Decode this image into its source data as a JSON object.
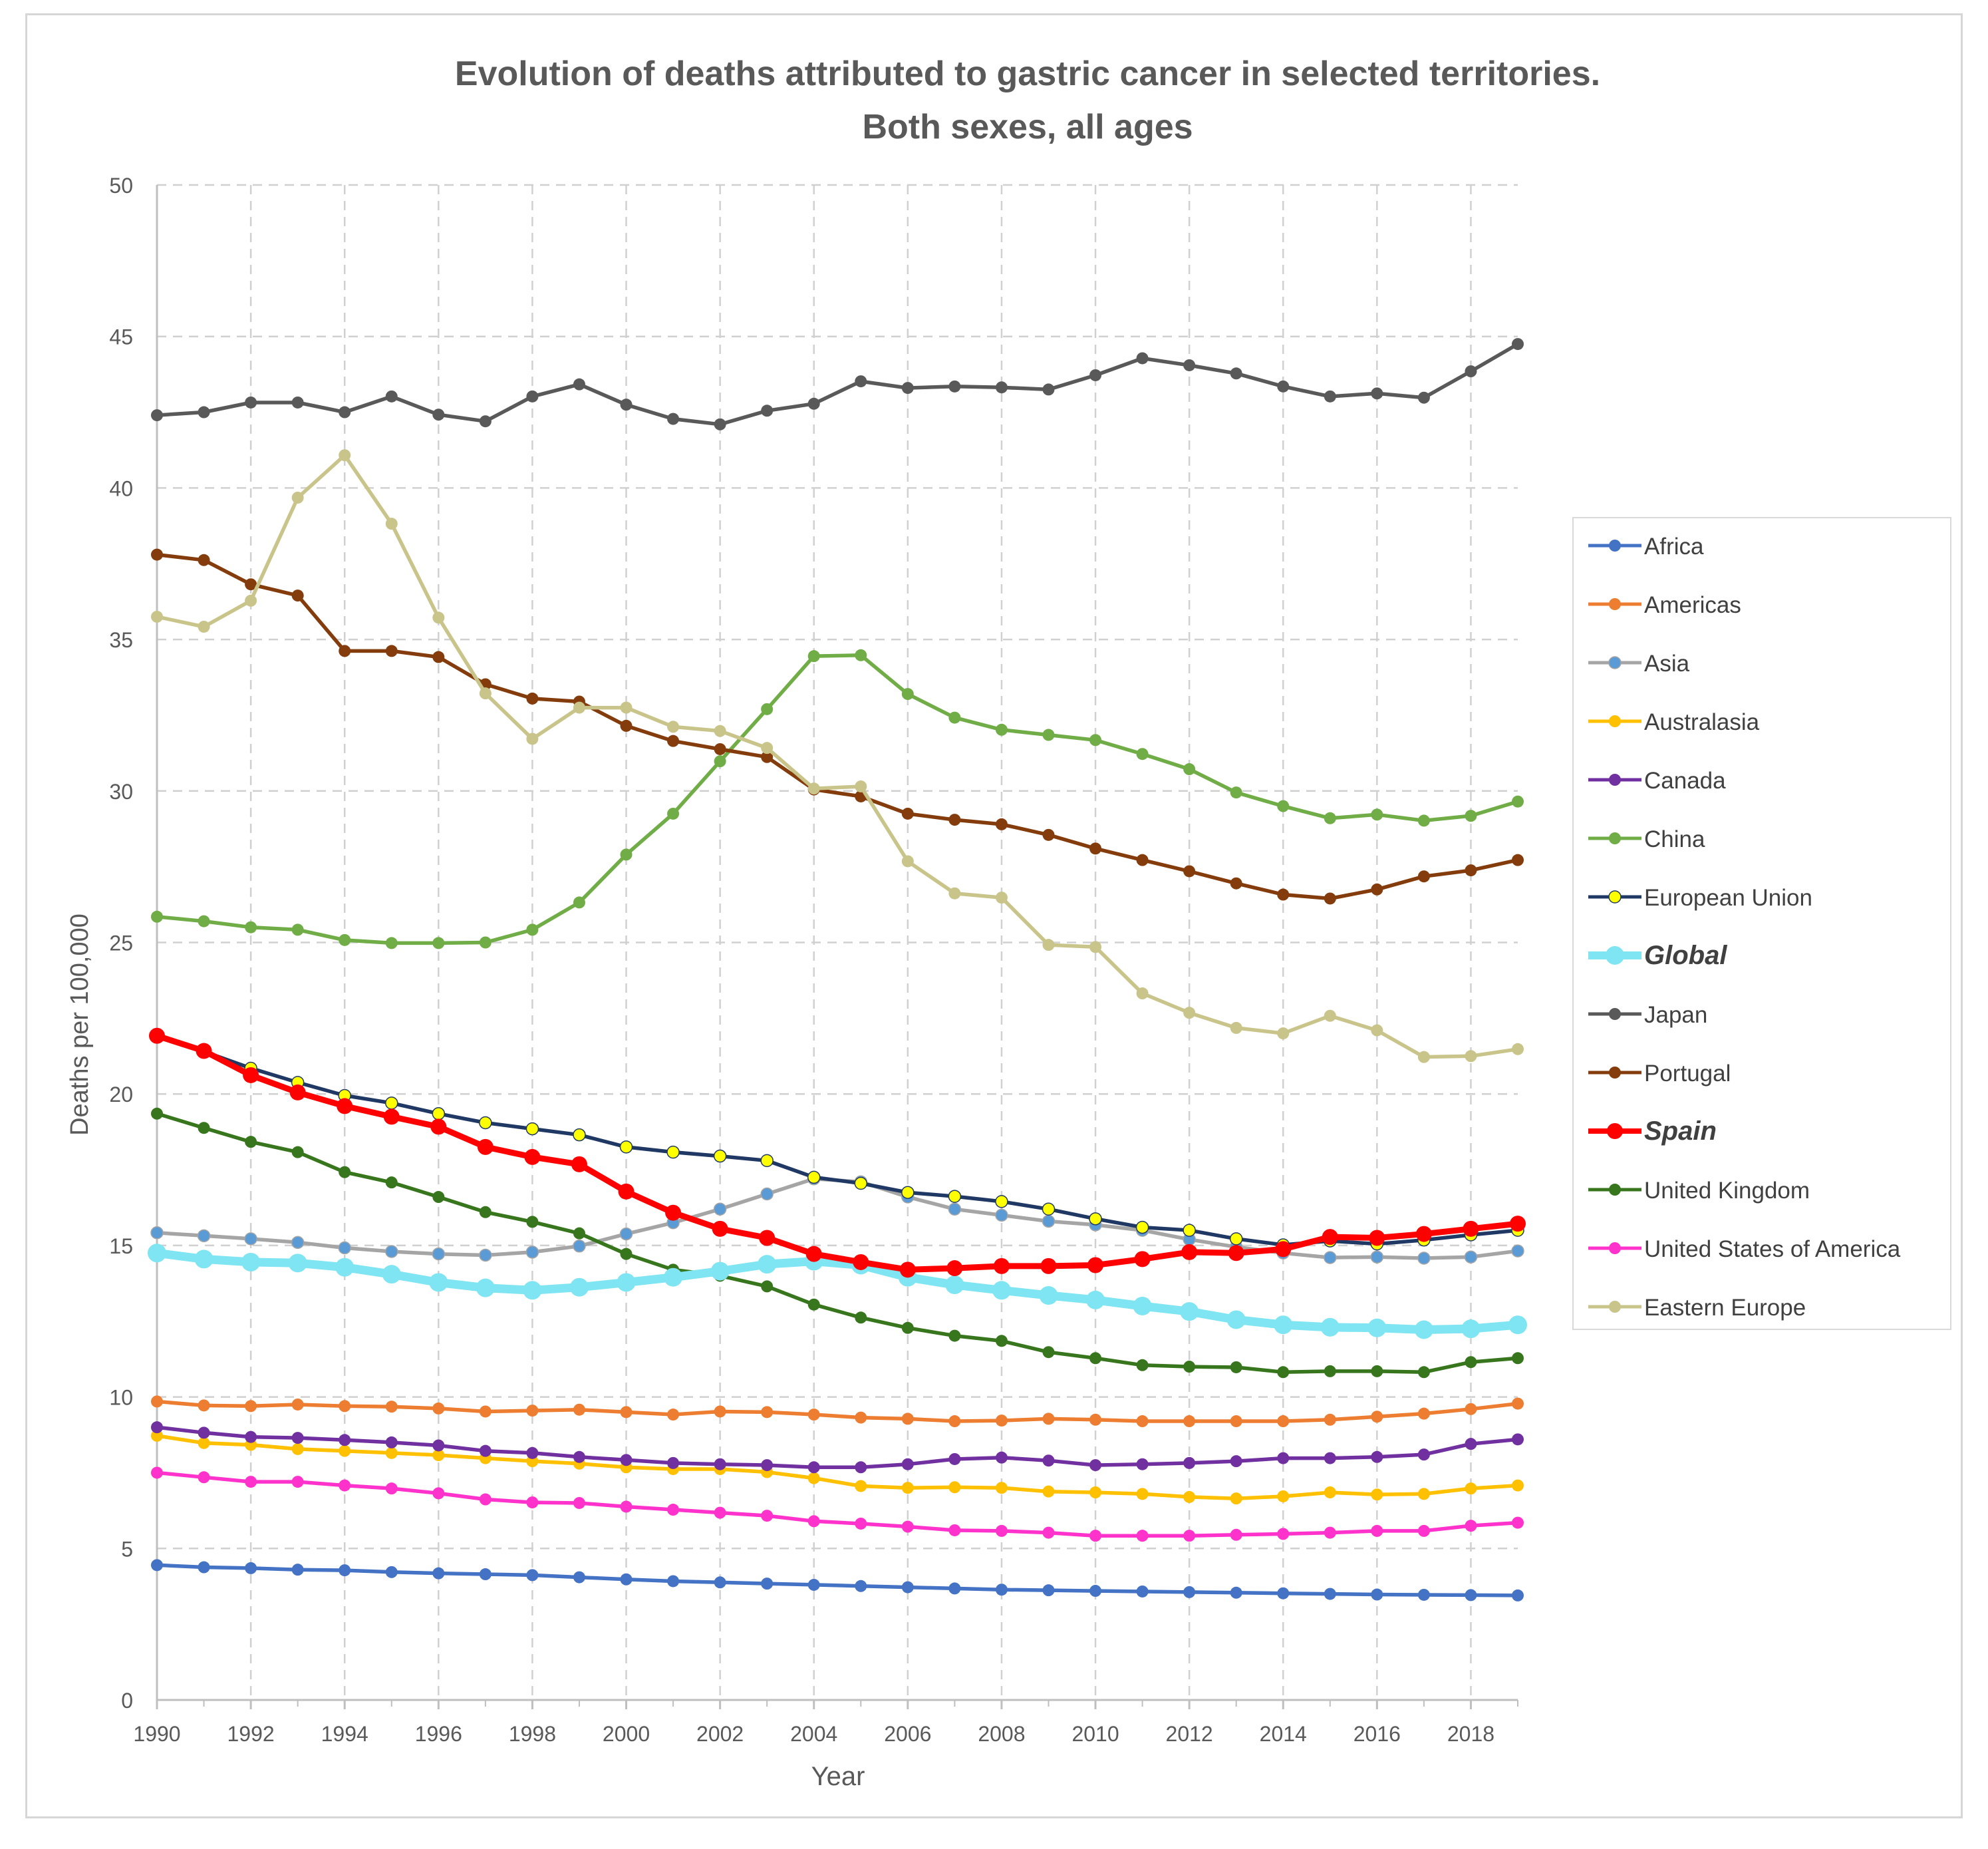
{
  "chart_data": {
    "type": "line",
    "title": "Evolution of deaths attributed to gastric cancer in selected territories.",
    "subtitle": "Both sexes, all ages",
    "xlabel": "Year",
    "ylabel": "Deaths per 100,000",
    "xlim": [
      1990,
      2019
    ],
    "ylim": [
      0,
      50
    ],
    "x_ticks": [
      "1990",
      "1992",
      "1994",
      "1996",
      "1998",
      "2000",
      "2002",
      "2004",
      "2006",
      "2008",
      "2010",
      "2012",
      "2014",
      "2016",
      "2018"
    ],
    "y_ticks": [
      "0",
      "5",
      "10",
      "15",
      "20",
      "25",
      "30",
      "35",
      "40",
      "45",
      "50"
    ],
    "grid": true,
    "legend_position": "right",
    "x": [
      1990,
      1991,
      1992,
      1993,
      1994,
      1995,
      1996,
      1997,
      1998,
      1999,
      2000,
      2001,
      2002,
      2003,
      2004,
      2005,
      2006,
      2007,
      2008,
      2009,
      2010,
      2011,
      2012,
      2013,
      2014,
      2015,
      2016,
      2017,
      2018,
      2019
    ],
    "series": [
      {
        "name": "Africa",
        "color": "#4472c4",
        "marker": "#4472c4",
        "style": "normal",
        "values": [
          4.45,
          4.38,
          4.35,
          4.3,
          4.28,
          4.22,
          4.18,
          4.15,
          4.12,
          4.05,
          3.98,
          3.92,
          3.88,
          3.84,
          3.8,
          3.76,
          3.72,
          3.68,
          3.64,
          3.62,
          3.6,
          3.58,
          3.56,
          3.54,
          3.52,
          3.5,
          3.48,
          3.47,
          3.46,
          3.45
        ]
      },
      {
        "name": "Americas",
        "color": "#ed7d31",
        "marker": "#ed7d31",
        "style": "normal",
        "values": [
          9.85,
          9.72,
          9.7,
          9.75,
          9.7,
          9.68,
          9.62,
          9.52,
          9.55,
          9.58,
          9.5,
          9.42,
          9.52,
          9.5,
          9.42,
          9.32,
          9.28,
          9.2,
          9.22,
          9.28,
          9.25,
          9.2,
          9.2,
          9.2,
          9.2,
          9.25,
          9.35,
          9.45,
          9.6,
          9.78
        ]
      },
      {
        "name": "Asia",
        "color": "#a5a5a5",
        "marker": "#5b9bd5",
        "style": "normal",
        "values": [
          15.42,
          15.32,
          15.22,
          15.1,
          14.92,
          14.8,
          14.72,
          14.68,
          14.78,
          14.98,
          15.38,
          15.75,
          16.2,
          16.7,
          17.2,
          17.1,
          16.6,
          16.2,
          16.0,
          15.8,
          15.68,
          15.5,
          15.2,
          14.95,
          14.75,
          14.6,
          14.62,
          14.58,
          14.62,
          14.82
        ]
      },
      {
        "name": "Australasia",
        "color": "#ffc000",
        "marker": "#ffc000",
        "style": "normal",
        "values": [
          8.72,
          8.48,
          8.42,
          8.28,
          8.22,
          8.15,
          8.08,
          7.98,
          7.88,
          7.8,
          7.68,
          7.62,
          7.62,
          7.52,
          7.32,
          7.06,
          7.0,
          7.02,
          7.0,
          6.88,
          6.85,
          6.8,
          6.7,
          6.65,
          6.72,
          6.85,
          6.78,
          6.8,
          6.98,
          7.08
        ]
      },
      {
        "name": "Canada",
        "color": "#7030a0",
        "marker": "#7030a0",
        "style": "normal",
        "values": [
          9.0,
          8.82,
          8.68,
          8.65,
          8.58,
          8.5,
          8.4,
          8.22,
          8.15,
          8.02,
          7.92,
          7.82,
          7.78,
          7.75,
          7.68,
          7.68,
          7.78,
          7.95,
          8.0,
          7.9,
          7.75,
          7.78,
          7.82,
          7.88,
          7.98,
          7.98,
          8.02,
          8.1,
          8.45,
          8.6
        ]
      },
      {
        "name": "China",
        "color": "#70ad47",
        "marker": "#70ad47",
        "style": "normal",
        "values": [
          25.85,
          25.7,
          25.5,
          25.42,
          25.08,
          24.98,
          24.98,
          25.0,
          25.42,
          26.32,
          27.9,
          29.25,
          30.98,
          32.7,
          34.45,
          34.48,
          33.2,
          32.42,
          32.02,
          31.85,
          31.68,
          31.22,
          30.72,
          29.95,
          29.5,
          29.1,
          29.22,
          29.02,
          29.18,
          29.65
        ]
      },
      {
        "name": "European Union",
        "color": "#1f3864",
        "marker": "#ffff00",
        "style": "normal",
        "values": [
          21.95,
          21.4,
          20.85,
          20.38,
          19.95,
          19.7,
          19.35,
          19.05,
          18.85,
          18.65,
          18.25,
          18.08,
          17.95,
          17.8,
          17.25,
          17.05,
          16.75,
          16.62,
          16.45,
          16.2,
          15.88,
          15.6,
          15.5,
          15.22,
          15.02,
          15.15,
          15.05,
          15.18,
          15.35,
          15.5
        ]
      },
      {
        "name": "Global",
        "color": "#7fe5f2",
        "marker": "#7fe5f2",
        "style": "thick",
        "values": [
          14.75,
          14.55,
          14.45,
          14.42,
          14.28,
          14.05,
          13.78,
          13.6,
          13.52,
          13.62,
          13.78,
          13.95,
          14.15,
          14.38,
          14.48,
          14.35,
          13.95,
          13.7,
          13.52,
          13.35,
          13.2,
          13.0,
          12.82,
          12.55,
          12.38,
          12.3,
          12.28,
          12.22,
          12.25,
          12.38
        ]
      },
      {
        "name": "Japan",
        "color": "#595959",
        "marker": "#595959",
        "style": "normal",
        "values": [
          42.4,
          42.5,
          42.82,
          42.82,
          42.5,
          43.02,
          42.42,
          42.2,
          43.02,
          43.42,
          42.75,
          42.28,
          42.1,
          42.55,
          42.78,
          43.52,
          43.3,
          43.35,
          43.32,
          43.25,
          43.72,
          44.28,
          44.05,
          43.78,
          43.35,
          43.02,
          43.12,
          42.98,
          43.85,
          44.75
        ]
      },
      {
        "name": "Portugal",
        "color": "#843c0c",
        "marker": "#843c0c",
        "style": "normal",
        "values": [
          37.8,
          37.62,
          36.82,
          36.45,
          34.62,
          34.62,
          34.42,
          33.52,
          33.05,
          32.95,
          32.15,
          31.65,
          31.38,
          31.12,
          30.05,
          29.82,
          29.25,
          29.05,
          28.9,
          28.55,
          28.1,
          27.72,
          27.35,
          26.95,
          26.58,
          26.45,
          26.75,
          27.18,
          27.38,
          27.72
        ]
      },
      {
        "name": "Spain",
        "color": "#ff0000",
        "marker": "#ff0000",
        "style": "bold",
        "values": [
          21.92,
          21.42,
          20.62,
          20.05,
          19.6,
          19.25,
          18.92,
          18.25,
          17.92,
          17.68,
          16.78,
          16.08,
          15.55,
          15.25,
          14.72,
          14.45,
          14.2,
          14.25,
          14.32,
          14.32,
          14.35,
          14.55,
          14.78,
          14.75,
          14.88,
          15.28,
          15.25,
          15.38,
          15.55,
          15.72
        ]
      },
      {
        "name": "United Kingdom",
        "color": "#38761d",
        "marker": "#38761d",
        "style": "normal",
        "values": [
          19.35,
          18.88,
          18.42,
          18.08,
          17.42,
          17.08,
          16.6,
          16.1,
          15.78,
          15.4,
          14.72,
          14.2,
          14.0,
          13.65,
          13.05,
          12.62,
          12.28,
          12.02,
          11.85,
          11.48,
          11.28,
          11.05,
          11.0,
          10.98,
          10.82,
          10.85,
          10.85,
          10.82,
          11.15,
          11.28
        ]
      },
      {
        "name": "United States of America",
        "color": "#ff33cc",
        "marker": "#ff33cc",
        "style": "normal",
        "values": [
          7.5,
          7.35,
          7.2,
          7.2,
          7.08,
          6.98,
          6.82,
          6.62,
          6.52,
          6.5,
          6.38,
          6.28,
          6.18,
          6.08,
          5.9,
          5.82,
          5.72,
          5.6,
          5.58,
          5.52,
          5.42,
          5.42,
          5.42,
          5.45,
          5.48,
          5.52,
          5.58,
          5.58,
          5.75,
          5.85
        ]
      },
      {
        "name": "Eastern Europe",
        "color": "#c9c48a",
        "marker": "#c9c48a",
        "style": "normal",
        "values": [
          35.75,
          35.42,
          36.28,
          39.68,
          41.08,
          38.82,
          35.72,
          33.22,
          31.72,
          32.75,
          32.75,
          32.12,
          31.98,
          31.42,
          30.08,
          30.15,
          27.68,
          26.62,
          26.48,
          24.92,
          24.85,
          23.32,
          22.68,
          22.18,
          22.0,
          22.58,
          22.1,
          21.22,
          21.25,
          21.48
        ]
      }
    ]
  }
}
